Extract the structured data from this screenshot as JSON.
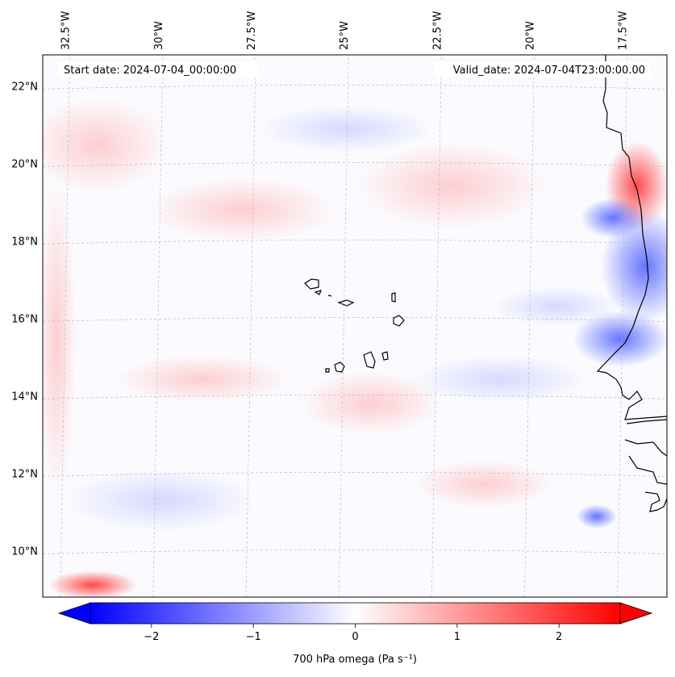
{
  "map": {
    "title_left": "Start date: 2024-07-04_00:00:00",
    "title_right": "Valid_date: 2024-07-04T23:00:00.00",
    "lon_ticks": [
      {
        "label": "32.5°W",
        "lon": -32.5
      },
      {
        "label": "30°W",
        "lon": -30
      },
      {
        "label": "27.5°W",
        "lon": -27.5
      },
      {
        "label": "25°W",
        "lon": -25
      },
      {
        "label": "22.5°W",
        "lon": -22.5
      },
      {
        "label": "20°W",
        "lon": -20
      },
      {
        "label": "17.5°W",
        "lon": -17.5
      }
    ],
    "lat_ticks": [
      {
        "label": "22°N",
        "lat": 22
      },
      {
        "label": "20°N",
        "lat": 20
      },
      {
        "label": "18°N",
        "lat": 18
      },
      {
        "label": "16°N",
        "lat": 16
      },
      {
        "label": "14°N",
        "lat": 14
      },
      {
        "label": "12°N",
        "lat": 12
      },
      {
        "label": "10°N",
        "lat": 10
      }
    ],
    "extent": {
      "lon_min": -33.1,
      "lon_max": -16.3,
      "lat_min": 8.8,
      "lat_max": 22.8
    },
    "colors": {
      "negative": "#0000ff",
      "neutral": "#ffffff",
      "positive": "#ff0000",
      "coast": "#000000",
      "grid": "#b0b0b0"
    }
  },
  "colorbar": {
    "label": "700 hPa omega (Pa s⁻¹)",
    "vmin": -2.6,
    "vmax": 2.6,
    "ticks": [
      {
        "label": "−2",
        "value": -2
      },
      {
        "label": "−1",
        "value": -1
      },
      {
        "label": "0",
        "value": 0
      },
      {
        "label": "1",
        "value": 1
      },
      {
        "label": "2",
        "value": 2
      }
    ],
    "colormap": "bwr"
  }
}
